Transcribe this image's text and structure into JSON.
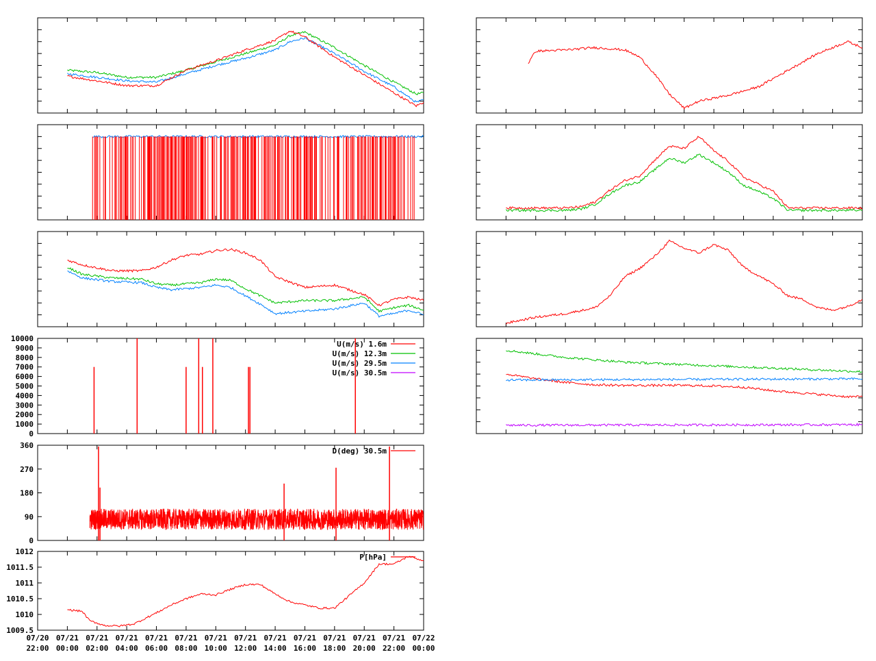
{
  "colors": {
    "red": "#ff0000",
    "green": "#00c000",
    "blue": "#0080ff",
    "purple": "#c000ff",
    "axis": "#000000",
    "background": "#ffffff"
  },
  "time_axis": {
    "range": [
      "07/20 22:00",
      "07/22 00:00"
    ],
    "ticks": [
      {
        "date": "07/20",
        "time": "22:00"
      },
      {
        "date": "07/21",
        "time": "00:00"
      },
      {
        "date": "07/21",
        "time": "02:00"
      },
      {
        "date": "07/21",
        "time": "04:00"
      },
      {
        "date": "07/21",
        "time": "06:00"
      },
      {
        "date": "07/21",
        "time": "08:00"
      },
      {
        "date": "07/21",
        "time": "10:00"
      },
      {
        "date": "07/21",
        "time": "12:00"
      },
      {
        "date": "07/21",
        "time": "14:00"
      },
      {
        "date": "07/21",
        "time": "16:00"
      },
      {
        "date": "07/21",
        "time": "18:00"
      },
      {
        "date": "07/21",
        "time": "20:00"
      },
      {
        "date": "07/21",
        "time": "22:00"
      },
      {
        "date": "07/22",
        "time": "00:00"
      }
    ]
  },
  "chart_data": [
    {
      "id": "left-1",
      "type": "line",
      "x_range_hours": [
        0,
        26
      ],
      "ylim": [
        0,
        8
      ],
      "y_tick_count": 9,
      "y_tick_labels": [],
      "series": [
        {
          "color": "#00c000",
          "x": [
            2,
            4,
            6,
            8,
            10,
            12,
            14,
            16,
            17,
            18,
            20,
            22,
            24,
            25.5,
            26
          ],
          "y": [
            3.6,
            3.4,
            3.0,
            3.0,
            3.6,
            4.3,
            5.0,
            5.7,
            6.5,
            6.8,
            5.5,
            4.0,
            2.6,
            1.6,
            1.7
          ]
        },
        {
          "color": "#0080ff",
          "x": [
            2,
            4,
            6,
            8,
            10,
            12,
            14,
            16,
            17,
            18,
            20,
            22,
            24,
            25.5,
            26
          ],
          "y": [
            3.3,
            3.0,
            2.7,
            2.6,
            3.3,
            4.0,
            4.6,
            5.3,
            6.0,
            6.3,
            5.0,
            3.5,
            2.2,
            0.9,
            1.1
          ]
        },
        {
          "color": "#ff0000",
          "x": [
            2,
            4,
            6,
            8,
            10,
            12,
            14,
            16,
            17,
            18,
            20,
            22,
            24,
            25.5,
            26
          ],
          "y": [
            3.1,
            2.7,
            2.3,
            2.3,
            3.6,
            4.4,
            5.3,
            6.1,
            6.9,
            6.4,
            4.7,
            3.2,
            1.7,
            0.6,
            0.9
          ]
        }
      ]
    },
    {
      "id": "left-2",
      "type": "line",
      "x_range_hours": [
        0,
        26
      ],
      "ylim": [
        0,
        8
      ],
      "y_tick_count": 9,
      "y_tick_labels": [],
      "series": [
        {
          "color": "#0080ff",
          "x": [
            3.7,
            26
          ],
          "y": [
            7,
            7
          ]
        },
        {
          "color": "#ff0000",
          "kind": "dropouts",
          "x": [
            3.7,
            25.5
          ],
          "y": [
            0,
            7
          ]
        }
      ]
    },
    {
      "id": "left-3",
      "type": "line",
      "x_range_hours": [
        0,
        26
      ],
      "ylim": [
        0,
        8
      ],
      "y_tick_count": 9,
      "y_tick_labels": [],
      "series": [
        {
          "color": "#ff0000",
          "x": [
            2,
            3,
            5,
            7,
            8,
            9,
            10,
            11,
            12,
            13,
            14,
            15,
            16,
            18,
            20,
            22,
            23,
            24,
            25,
            26
          ],
          "y": [
            5.6,
            5.2,
            4.7,
            4.7,
            5.0,
            5.6,
            6.0,
            6.1,
            6.4,
            6.5,
            6.2,
            5.6,
            4.2,
            3.3,
            3.5,
            2.7,
            1.8,
            2.3,
            2.5,
            2.2
          ]
        },
        {
          "color": "#00c000",
          "x": [
            2,
            3,
            5,
            7,
            8,
            9,
            10,
            11,
            12,
            13,
            14,
            15,
            16,
            18,
            20,
            22,
            23,
            24,
            25,
            26
          ],
          "y": [
            5.0,
            4.4,
            4.1,
            4.0,
            3.6,
            3.5,
            3.6,
            3.7,
            4.0,
            3.9,
            3.2,
            2.6,
            2.0,
            2.2,
            2.2,
            2.5,
            1.3,
            1.6,
            1.8,
            1.4
          ]
        },
        {
          "color": "#0080ff",
          "x": [
            2,
            3,
            5,
            7,
            8,
            9,
            10,
            11,
            12,
            13,
            14,
            15,
            16,
            18,
            20,
            22,
            23,
            24,
            25,
            26
          ],
          "y": [
            4.7,
            4.1,
            3.8,
            3.7,
            3.3,
            3.1,
            3.2,
            3.3,
            3.5,
            3.3,
            2.6,
            1.9,
            1.1,
            1.3,
            1.5,
            2.0,
            0.9,
            1.1,
            1.4,
            1.0
          ]
        }
      ]
    },
    {
      "id": "left-4",
      "type": "line",
      "x_range_hours": [
        0,
        26
      ],
      "ylim": [
        0,
        10000
      ],
      "y_tick_labels": [
        "0",
        "1000",
        "2000",
        "3000",
        "4000",
        "5000",
        "6000",
        "7000",
        "8000",
        "9000",
        "10000"
      ],
      "legend": [
        "U(m/s)  1.6m",
        "U(m/s) 12.3m",
        "U(m/s) 29.5m",
        "U(m/s) 30.5m"
      ],
      "series": [
        {
          "name": "U(m/s)  1.6m",
          "color": "#ff0000",
          "kind": "spikes",
          "x": [
            3.8,
            6.7,
            10.0,
            10.85,
            11.1,
            11.8,
            14.2,
            14.3,
            21.4
          ],
          "y": [
            7000,
            10000,
            7000,
            10000,
            7000,
            10000,
            7000,
            7000,
            10000
          ]
        },
        {
          "name": "U(m/s) 12.3m",
          "color": "#00c000",
          "x": [],
          "y": []
        },
        {
          "name": "U(m/s) 29.5m",
          "color": "#0080ff",
          "x": [],
          "y": []
        },
        {
          "name": "U(m/s) 30.5m",
          "color": "#c000ff",
          "x": [],
          "y": []
        }
      ]
    },
    {
      "id": "left-5",
      "type": "line",
      "x_range_hours": [
        0,
        26
      ],
      "ylim": [
        0,
        360
      ],
      "y_tick_labels": [
        "0",
        "90",
        "180",
        "270",
        "360"
      ],
      "legend": [
        "D(deg)  30.5m"
      ],
      "series": [
        {
          "name": "D(deg)  30.5m",
          "color": "#ff0000",
          "kind": "noise",
          "x": [
            3.5,
            26
          ],
          "y": [
            40,
            120
          ]
        },
        {
          "name": "D(deg)  30.5m",
          "color": "#ff0000",
          "kind": "spikes",
          "x": [
            4.1,
            4.2,
            16.6,
            20.1,
            23.7
          ],
          "y": [
            355,
            200,
            215,
            275,
            355
          ]
        }
      ]
    },
    {
      "id": "left-6",
      "type": "line",
      "x_range_hours": [
        0,
        26
      ],
      "ylim": [
        1009.5,
        1012
      ],
      "y_tick_labels": [
        "1009.5",
        "1010",
        "1010.5",
        "1011",
        "1011.5",
        "1012"
      ],
      "legend": [
        "P[hPa]"
      ],
      "series": [
        {
          "name": "P[hPa]",
          "color": "#ff0000",
          "x": [
            2,
            3,
            3.5,
            4.5,
            5.5,
            6.5,
            8,
            9,
            10,
            11,
            12,
            13,
            14,
            15,
            16,
            17,
            18,
            19,
            20,
            21,
            22,
            23,
            24,
            25,
            26
          ],
          "y": [
            1010.15,
            1010.1,
            1009.8,
            1009.65,
            1009.63,
            1009.7,
            1010.05,
            1010.3,
            1010.5,
            1010.65,
            1010.62,
            1010.8,
            1010.95,
            1010.95,
            1010.65,
            1010.4,
            1010.3,
            1010.2,
            1010.2,
            1010.6,
            1011.0,
            1011.6,
            1011.6,
            1011.85,
            1011.7
          ]
        }
      ]
    },
    {
      "id": "right-1",
      "type": "line",
      "x_range_hours": [
        0,
        26
      ],
      "ylim": [
        0,
        8
      ],
      "y_tick_count": 9,
      "y_tick_labels": [],
      "series": [
        {
          "color": "#ff0000",
          "x": [
            3.5,
            4,
            6,
            8,
            10,
            11,
            12,
            13,
            14,
            15,
            17,
            19,
            21,
            23,
            25,
            26
          ],
          "y": [
            4.2,
            5.2,
            5.3,
            5.5,
            5.3,
            4.7,
            3.3,
            1.6,
            0.4,
            1.0,
            1.5,
            2.2,
            3.6,
            5.0,
            6.0,
            5.5
          ]
        }
      ]
    },
    {
      "id": "right-2",
      "type": "line",
      "x_range_hours": [
        0,
        26
      ],
      "ylim": [
        0,
        8
      ],
      "y_tick_count": 9,
      "y_tick_labels": [],
      "series": [
        {
          "color": "#ff0000",
          "x": [
            2,
            4,
            6,
            7,
            8,
            9,
            10,
            11,
            12,
            13,
            14,
            15,
            16,
            17,
            18,
            19,
            20,
            21,
            22,
            24,
            26
          ],
          "y": [
            1.0,
            1.0,
            1.0,
            1.1,
            1.5,
            2.5,
            3.3,
            3.7,
            5.0,
            6.2,
            6.0,
            7.0,
            5.8,
            4.9,
            3.6,
            3.0,
            2.4,
            1.0,
            1.0,
            1.0,
            1.0
          ]
        },
        {
          "color": "#00c000",
          "x": [
            2,
            4,
            6,
            7,
            8,
            9,
            10,
            11,
            12,
            13,
            14,
            15,
            16,
            17,
            18,
            19,
            20,
            21,
            22,
            24,
            26
          ],
          "y": [
            0.8,
            0.8,
            0.8,
            0.9,
            1.3,
            2.2,
            2.9,
            3.2,
            4.2,
            5.2,
            4.8,
            5.5,
            4.8,
            4.0,
            2.9,
            2.4,
            1.8,
            0.8,
            0.8,
            0.8,
            0.8
          ]
        }
      ]
    },
    {
      "id": "right-3",
      "type": "line",
      "x_range_hours": [
        0,
        26
      ],
      "ylim": [
        0,
        8
      ],
      "y_tick_count": 9,
      "y_tick_labels": [],
      "series": [
        {
          "color": "#ff0000",
          "x": [
            2,
            4,
            6,
            8,
            9,
            10,
            11,
            12,
            13,
            14,
            15,
            16,
            17,
            18,
            19,
            20,
            21,
            22,
            23,
            24,
            25,
            26
          ],
          "y": [
            0.3,
            0.8,
            1.1,
            1.6,
            2.6,
            4.2,
            4.9,
            5.9,
            7.2,
            6.6,
            6.2,
            6.9,
            6.4,
            5.0,
            4.3,
            3.6,
            2.6,
            2.3,
            1.6,
            1.4,
            1.7,
            2.3
          ]
        }
      ]
    },
    {
      "id": "right-4",
      "type": "line",
      "x_range_hours": [
        0,
        26
      ],
      "ylim": [
        0,
        8
      ],
      "y_tick_count": 9,
      "y_tick_labels": [],
      "series": [
        {
          "color": "#00c000",
          "x": [
            2,
            6,
            10,
            14,
            18,
            22,
            26
          ],
          "y": [
            7.0,
            6.4,
            6.0,
            5.8,
            5.6,
            5.4,
            5.2
          ]
        },
        {
          "color": "#ff0000",
          "x": [
            2,
            4,
            6,
            8,
            10,
            14,
            16,
            18,
            20,
            22,
            24,
            25,
            26
          ],
          "y": [
            5.0,
            4.6,
            4.3,
            4.1,
            4.05,
            4.05,
            4.0,
            3.9,
            3.6,
            3.4,
            3.2,
            3.1,
            3.1
          ]
        },
        {
          "color": "#0080ff",
          "x": [
            2,
            26
          ],
          "y": [
            4.5,
            4.6
          ]
        },
        {
          "color": "#c000ff",
          "x": [
            2,
            26
          ],
          "y": [
            0.7,
            0.75
          ]
        }
      ]
    }
  ]
}
